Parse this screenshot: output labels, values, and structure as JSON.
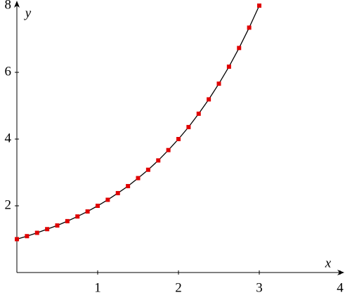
{
  "chart_data": {
    "type": "line",
    "x_label": "x",
    "y_label": "y",
    "x": [
      0,
      0.125,
      0.25,
      0.375,
      0.5,
      0.625,
      0.75,
      0.875,
      1,
      1.125,
      1.25,
      1.375,
      1.5,
      1.625,
      1.75,
      1.875,
      2,
      2.125,
      2.25,
      2.375,
      2.5,
      2.625,
      2.75,
      2.875,
      3
    ],
    "series": [
      {
        "line_color": "#000000",
        "marker_color": "#e00000",
        "values": [
          1,
          1.09,
          1.19,
          1.3,
          1.41,
          1.54,
          1.68,
          1.83,
          2,
          2.18,
          2.38,
          2.59,
          2.83,
          3.08,
          3.36,
          3.67,
          4,
          4.36,
          4.76,
          5.19,
          5.66,
          6.17,
          6.73,
          7.34,
          8
        ]
      }
    ],
    "xlim": [
      0,
      4
    ],
    "ylim": [
      0,
      8
    ],
    "xticks": [
      1,
      2,
      3,
      4
    ],
    "yticks": [
      2,
      4,
      6,
      8
    ]
  }
}
